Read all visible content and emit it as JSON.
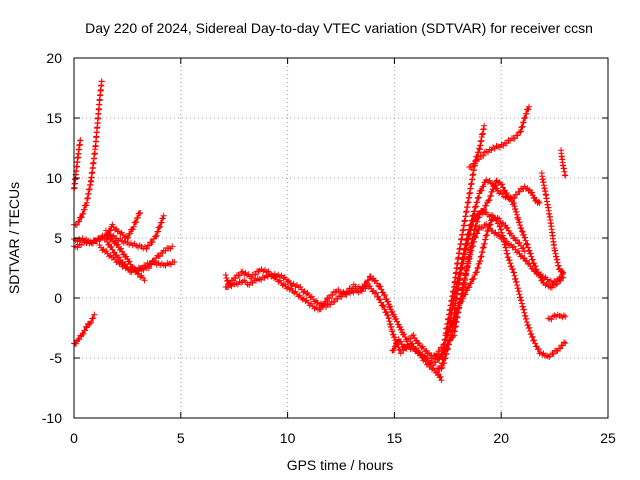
{
  "chart_data": {
    "type": "scatter",
    "title": "Day 220 of 2024, Sidereal Day-to-day VTEC variation (SDTVAR) for receiver ccsn",
    "xlabel": "GPS time / hours",
    "ylabel": "SDTVAR / TECUs",
    "xlim": [
      0,
      25
    ],
    "ylim": [
      -10,
      20
    ],
    "xticks": [
      0,
      5,
      10,
      15,
      20,
      25
    ],
    "yticks": [
      -10,
      -5,
      0,
      5,
      10,
      15,
      20
    ],
    "grid": true,
    "marker": "+",
    "color": "#ff0000",
    "series": [
      {
        "name": "s01",
        "points": [
          [
            0.0,
            9.0
          ],
          [
            0.1,
            10.5
          ],
          [
            0.2,
            12.0
          ],
          [
            0.3,
            13.2
          ]
        ]
      },
      {
        "name": "s02",
        "points": [
          [
            0.0,
            6.0
          ],
          [
            0.2,
            6.3
          ],
          [
            0.4,
            7.0
          ],
          [
            0.6,
            8.0
          ],
          [
            0.8,
            9.8
          ],
          [
            1.0,
            12.5
          ],
          [
            1.1,
            14.5
          ],
          [
            1.2,
            16.5
          ],
          [
            1.3,
            18.1
          ]
        ]
      },
      {
        "name": "s03",
        "points": [
          [
            0.0,
            4.8
          ],
          [
            0.4,
            4.9
          ],
          [
            0.8,
            4.6
          ],
          [
            1.2,
            4.9
          ],
          [
            1.5,
            5.1
          ],
          [
            1.8,
            6.0
          ],
          [
            2.1,
            5.5
          ],
          [
            2.5,
            5.0
          ],
          [
            2.8,
            6.0
          ],
          [
            3.1,
            7.2
          ]
        ]
      },
      {
        "name": "s04",
        "points": [
          [
            0.0,
            4.2
          ],
          [
            0.5,
            4.6
          ],
          [
            1.0,
            4.8
          ],
          [
            1.5,
            5.2
          ],
          [
            1.9,
            4.7
          ],
          [
            2.2,
            4.0
          ],
          [
            2.5,
            3.2
          ],
          [
            2.8,
            2.4
          ],
          [
            3.1,
            1.8
          ],
          [
            3.3,
            1.6
          ]
        ]
      },
      {
        "name": "s05",
        "points": [
          [
            1.5,
            5.5
          ],
          [
            2.0,
            4.9
          ],
          [
            2.5,
            4.6
          ],
          [
            3.0,
            4.3
          ],
          [
            3.4,
            4.2
          ],
          [
            3.8,
            5.0
          ],
          [
            4.2,
            6.8
          ]
        ]
      },
      {
        "name": "s06",
        "points": [
          [
            1.5,
            4.8
          ],
          [
            2.0,
            3.5
          ],
          [
            2.5,
            2.5
          ],
          [
            3.0,
            2.3
          ],
          [
            3.5,
            2.6
          ],
          [
            3.9,
            3.4
          ],
          [
            4.2,
            3.9
          ],
          [
            4.6,
            4.3
          ]
        ]
      },
      {
        "name": "s07",
        "points": [
          [
            1.2,
            4.3
          ],
          [
            1.7,
            3.5
          ],
          [
            2.2,
            2.8
          ],
          [
            2.7,
            2.2
          ],
          [
            3.2,
            2.6
          ],
          [
            3.7,
            3.0
          ],
          [
            4.2,
            2.7
          ],
          [
            4.7,
            3.0
          ]
        ]
      },
      {
        "name": "s08",
        "points": [
          [
            0.0,
            -3.9
          ],
          [
            0.2,
            -3.5
          ],
          [
            0.4,
            -3.0
          ],
          [
            0.6,
            -2.4
          ],
          [
            0.8,
            -1.9
          ],
          [
            0.95,
            -1.5
          ]
        ]
      },
      {
        "name": "s09",
        "points": [
          [
            7.1,
            1.8
          ],
          [
            7.3,
            1.0
          ],
          [
            7.6,
            1.2
          ],
          [
            7.9,
            1.4
          ],
          [
            8.2,
            1.2
          ],
          [
            8.6,
            1.5
          ],
          [
            9.0,
            1.8
          ],
          [
            9.4,
            2.0
          ],
          [
            9.8,
            1.7
          ],
          [
            10.2,
            1.2
          ],
          [
            10.6,
            0.8
          ],
          [
            11.0,
            0.2
          ],
          [
            11.4,
            -0.4
          ],
          [
            11.8,
            -0.7
          ],
          [
            12.2,
            -0.2
          ],
          [
            12.6,
            0.3
          ],
          [
            13.0,
            0.5
          ],
          [
            13.4,
            0.6
          ],
          [
            13.8,
            1.0
          ],
          [
            14.2,
            0.2
          ],
          [
            14.5,
            -0.8
          ],
          [
            14.7,
            -1.5
          ],
          [
            14.9,
            -2.8
          ],
          [
            15.1,
            -3.8
          ],
          [
            15.3,
            -4.5
          ],
          [
            15.6,
            -4.0
          ],
          [
            15.9,
            -4.3
          ],
          [
            16.2,
            -4.6
          ],
          [
            16.5,
            -5.0
          ],
          [
            16.8,
            -5.5
          ],
          [
            17.0,
            -5.2
          ],
          [
            17.2,
            -4.8
          ],
          [
            17.4,
            -4.2
          ],
          [
            17.6,
            -3.5
          ],
          [
            17.8,
            -3.0
          ],
          [
            18.0,
            -1.0
          ],
          [
            18.2,
            0.8
          ],
          [
            18.4,
            2.5
          ],
          [
            18.6,
            4.0
          ],
          [
            18.8,
            5.2
          ],
          [
            19.0,
            5.8
          ],
          [
            19.3,
            6.1
          ],
          [
            19.6,
            5.6
          ],
          [
            20.0,
            5.0
          ],
          [
            20.4,
            4.5
          ],
          [
            20.8,
            3.8
          ],
          [
            21.2,
            3.0
          ],
          [
            21.6,
            2.2
          ],
          [
            22.0,
            1.7
          ],
          [
            22.4,
            1.3
          ],
          [
            22.7,
            1.5
          ],
          [
            22.9,
            2.0
          ]
        ]
      },
      {
        "name": "s10",
        "points": [
          [
            7.1,
            0.8
          ],
          [
            7.5,
            1.6
          ],
          [
            7.9,
            2.2
          ],
          [
            8.3,
            1.7
          ],
          [
            8.7,
            2.4
          ],
          [
            9.1,
            2.1
          ],
          [
            9.5,
            1.5
          ],
          [
            9.9,
            1.0
          ],
          [
            10.3,
            0.5
          ],
          [
            10.7,
            0.0
          ],
          [
            11.1,
            -0.6
          ],
          [
            11.5,
            -1.0
          ],
          [
            11.9,
            0.0
          ],
          [
            12.3,
            0.6
          ],
          [
            12.7,
            0.4
          ],
          [
            13.1,
            1.0
          ],
          [
            13.5,
            0.8
          ],
          [
            13.9,
            1.8
          ],
          [
            14.3,
            1.0
          ],
          [
            14.6,
            0.0
          ],
          [
            14.8,
            -0.8
          ],
          [
            15.0,
            -1.6
          ],
          [
            15.2,
            -2.2
          ],
          [
            15.4,
            -3.0
          ],
          [
            15.6,
            -3.5
          ],
          [
            15.9,
            -3.2
          ],
          [
            16.2,
            -4.0
          ],
          [
            16.5,
            -4.4
          ],
          [
            16.8,
            -5.0
          ],
          [
            17.0,
            -4.6
          ],
          [
            17.3,
            -4.0
          ],
          [
            17.6,
            -2.5
          ],
          [
            17.9,
            -1.0
          ],
          [
            18.2,
            0.0
          ],
          [
            18.5,
            1.0
          ],
          [
            18.8,
            2.0
          ],
          [
            19.0,
            3.0
          ],
          [
            19.2,
            4.5
          ],
          [
            19.4,
            5.8
          ],
          [
            19.6,
            6.7
          ],
          [
            19.9,
            6.5
          ],
          [
            20.2,
            6.0
          ],
          [
            20.5,
            5.2
          ],
          [
            20.8,
            4.6
          ],
          [
            21.1,
            4.0
          ]
        ]
      },
      {
        "name": "s11",
        "points": [
          [
            14.9,
            -4.5
          ],
          [
            15.2,
            -3.5
          ],
          [
            15.5,
            -4.2
          ],
          [
            15.8,
            -3.8
          ],
          [
            16.1,
            -4.5
          ],
          [
            16.4,
            -5.2
          ],
          [
            16.7,
            -5.8
          ],
          [
            17.0,
            -6.2
          ],
          [
            17.2,
            -6.8
          ]
        ]
      },
      {
        "name": "s12",
        "points": [
          [
            17.2,
            -6.0
          ],
          [
            17.4,
            -3.0
          ],
          [
            17.6,
            -1.0
          ],
          [
            17.8,
            1.0
          ],
          [
            18.0,
            3.5
          ],
          [
            18.2,
            5.5
          ],
          [
            18.4,
            7.5
          ],
          [
            18.6,
            9.5
          ],
          [
            18.8,
            11.5
          ],
          [
            19.0,
            12.5
          ],
          [
            19.1,
            13.5
          ],
          [
            19.2,
            14.3
          ]
        ]
      },
      {
        "name": "s13",
        "points": [
          [
            17.0,
            -6.0
          ],
          [
            17.3,
            -5.5
          ],
          [
            17.6,
            -3.5
          ],
          [
            17.9,
            -1.5
          ],
          [
            18.2,
            0.5
          ],
          [
            18.4,
            2.5
          ],
          [
            18.6,
            4.5
          ],
          [
            18.8,
            6.0
          ],
          [
            19.0,
            7.0
          ],
          [
            19.2,
            7.5
          ],
          [
            19.4,
            8.0
          ],
          [
            19.6,
            9.0
          ],
          [
            19.8,
            9.8
          ],
          [
            20.0,
            9.5
          ],
          [
            20.3,
            8.5
          ],
          [
            20.6,
            7.8
          ],
          [
            20.8,
            6.5
          ],
          [
            21.0,
            5.5
          ],
          [
            21.2,
            4.5
          ],
          [
            21.5,
            3.0
          ],
          [
            21.8,
            1.8
          ],
          [
            22.0,
            1.2
          ],
          [
            22.3,
            0.9
          ],
          [
            22.6,
            1.2
          ],
          [
            22.9,
            1.8
          ]
        ]
      },
      {
        "name": "s14",
        "points": [
          [
            17.5,
            -3.0
          ],
          [
            17.8,
            0.0
          ],
          [
            18.1,
            2.5
          ],
          [
            18.4,
            5.0
          ],
          [
            18.7,
            7.0
          ],
          [
            19.0,
            8.8
          ],
          [
            19.3,
            9.8
          ],
          [
            19.6,
            9.5
          ],
          [
            19.9,
            8.8
          ],
          [
            20.2,
            8.5
          ],
          [
            20.5,
            8.2
          ],
          [
            20.8,
            8.8
          ],
          [
            21.1,
            9.3
          ],
          [
            21.4,
            8.8
          ],
          [
            21.6,
            8.2
          ],
          [
            21.8,
            7.8
          ]
        ]
      },
      {
        "name": "s15",
        "points": [
          [
            17.8,
            -1.0
          ],
          [
            18.1,
            2.0
          ],
          [
            18.4,
            4.5
          ],
          [
            18.7,
            6.5
          ],
          [
            19.0,
            7.2
          ],
          [
            19.3,
            7.0
          ],
          [
            19.6,
            6.8
          ],
          [
            19.9,
            6.2
          ],
          [
            20.1,
            5.0
          ],
          [
            20.3,
            3.5
          ],
          [
            20.6,
            2.0
          ],
          [
            20.9,
            0.0
          ],
          [
            21.2,
            -2.0
          ],
          [
            21.5,
            -3.5
          ],
          [
            21.8,
            -4.5
          ],
          [
            22.1,
            -4.9
          ],
          [
            22.4,
            -4.7
          ],
          [
            22.7,
            -4.2
          ],
          [
            23.0,
            -3.7
          ]
        ]
      },
      {
        "name": "s16",
        "points": [
          [
            18.5,
            10.8
          ],
          [
            18.9,
            11.5
          ],
          [
            19.3,
            12.2
          ],
          [
            19.7,
            12.5
          ],
          [
            20.1,
            12.8
          ],
          [
            20.5,
            13.2
          ],
          [
            20.9,
            13.8
          ],
          [
            21.1,
            15.0
          ],
          [
            21.3,
            16.0
          ]
        ]
      },
      {
        "name": "s17",
        "points": [
          [
            21.9,
            10.3
          ],
          [
            22.1,
            8.5
          ],
          [
            22.3,
            6.5
          ],
          [
            22.5,
            4.0
          ],
          [
            22.7,
            2.5
          ],
          [
            22.9,
            2.0
          ]
        ]
      },
      {
        "name": "s18",
        "points": [
          [
            22.8,
            12.2
          ],
          [
            22.9,
            11.0
          ],
          [
            23.0,
            10.2
          ]
        ]
      },
      {
        "name": "s19",
        "points": [
          [
            22.2,
            -1.8
          ],
          [
            22.5,
            -1.5
          ],
          [
            22.8,
            -1.5
          ],
          [
            23.0,
            -1.5
          ]
        ]
      }
    ]
  }
}
